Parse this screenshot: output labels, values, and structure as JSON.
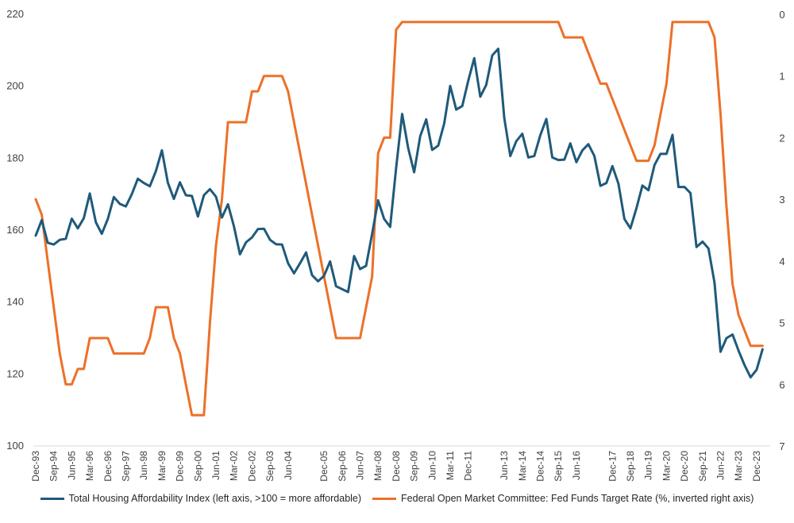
{
  "chart_data": {
    "type": "line",
    "title": "",
    "x_tick_labels": [
      "Dec-93",
      "Sep-94",
      "Jun-95",
      "Mar-96",
      "Dec-96",
      "Sep-97",
      "Jun-98",
      "Mar-99",
      "Dec-99",
      "Sep-00",
      "Jun-01",
      "Mar-02",
      "Dec-02",
      "Sep-03",
      "Jun-04",
      "Dec-05",
      "Sep-06",
      "Jun-07",
      "Mar-08",
      "Dec-08",
      "Sep-09",
      "Jun-10",
      "Mar-11",
      "Dec-11",
      "Jun-13",
      "Mar-14",
      "Dec-14",
      "Sep-15",
      "Jun-16",
      "Dec-17",
      "Sep-18",
      "Jun-19",
      "Mar-20",
      "Dec-20",
      "Sep-21",
      "Jun-22",
      "Mar-23",
      "Dec-23"
    ],
    "left_axis": {
      "ylim": [
        100,
        220
      ],
      "ticks": [
        100,
        120,
        140,
        160,
        180,
        200,
        220
      ]
    },
    "right_axis": {
      "ylim": [
        0,
        7
      ],
      "inverted": true,
      "ticks": [
        0,
        1,
        2,
        3,
        4,
        5,
        6,
        7
      ]
    },
    "x_range": [
      "1993-12",
      "2024-06"
    ],
    "grid": false,
    "legend_position": "bottom",
    "series": [
      {
        "name": "Total Housing Affordability Index (left axis, >100 = more affordable)",
        "axis": "left",
        "color": "#1f5a7a",
        "x": [
          "1993-12",
          "1994-03",
          "1994-06",
          "1994-09",
          "1994-12",
          "1995-03",
          "1995-06",
          "1995-09",
          "1995-12",
          "1996-03",
          "1996-06",
          "1996-09",
          "1996-12",
          "1997-03",
          "1997-06",
          "1997-09",
          "1997-12",
          "1998-03",
          "1998-06",
          "1998-09",
          "1998-12",
          "1999-03",
          "1999-06",
          "1999-09",
          "1999-12",
          "2000-03",
          "2000-06",
          "2000-09",
          "2000-12",
          "2001-03",
          "2001-06",
          "2001-09",
          "2001-12",
          "2002-03",
          "2002-06",
          "2002-09",
          "2002-12",
          "2003-03",
          "2003-06",
          "2003-09",
          "2003-12",
          "2004-03",
          "2004-06",
          "2004-09",
          "2004-12",
          "2005-03",
          "2005-06",
          "2005-09",
          "2005-12",
          "2006-03",
          "2006-06",
          "2006-09",
          "2006-12",
          "2007-03",
          "2007-06",
          "2007-09",
          "2007-12",
          "2008-03",
          "2008-06",
          "2008-09",
          "2008-12",
          "2009-03",
          "2009-06",
          "2009-09",
          "2009-12",
          "2010-03",
          "2010-06",
          "2010-09",
          "2010-12",
          "2011-03",
          "2011-06",
          "2011-09",
          "2011-12",
          "2012-03",
          "2012-06",
          "2012-09",
          "2012-12",
          "2013-03",
          "2013-06",
          "2013-09",
          "2013-12",
          "2014-03",
          "2014-06",
          "2014-09",
          "2014-12",
          "2015-03",
          "2015-06",
          "2015-09",
          "2015-12",
          "2016-03",
          "2016-06",
          "2016-09",
          "2016-12",
          "2017-03",
          "2017-06",
          "2017-09",
          "2017-12",
          "2018-03",
          "2018-06",
          "2018-09",
          "2018-12",
          "2019-03",
          "2019-06",
          "2019-09",
          "2019-12",
          "2020-03",
          "2020-06",
          "2020-09",
          "2020-12",
          "2021-03",
          "2021-06",
          "2021-09",
          "2021-12",
          "2022-03",
          "2022-06",
          "2022-09",
          "2022-12",
          "2023-03",
          "2023-06",
          "2023-09",
          "2023-12",
          "2024-03"
        ],
        "values": [
          158.5,
          162.8,
          156.5,
          156.0,
          157.3,
          157.6,
          163.2,
          160.5,
          163.3,
          170.2,
          162.2,
          159.0,
          163.1,
          169.2,
          167.3,
          166.6,
          170.0,
          174.3,
          173.1,
          172.2,
          176.4,
          182.2,
          173.2,
          168.7,
          173.3,
          169.7,
          169.5,
          163.8,
          169.7,
          171.4,
          169.3,
          163.5,
          167.2,
          161.0,
          153.3,
          156.6,
          158.0,
          160.3,
          160.4,
          157.3,
          156.1,
          156.0,
          150.8,
          148.0,
          150.8,
          153.8,
          147.5,
          145.8,
          147.3,
          151.3,
          144.4,
          143.6,
          142.8,
          152.8,
          149.2,
          150.1,
          159.0,
          168.3,
          163.1,
          160.9,
          177.3,
          192.3,
          182.8,
          176.1,
          186.1,
          190.8,
          182.3,
          183.5,
          189.7,
          200.1,
          193.5,
          194.5,
          201.5,
          207.8,
          197.1,
          200.4,
          208.6,
          210.4,
          191.2,
          180.6,
          184.7,
          186.8,
          180.2,
          180.6,
          186.4,
          190.9,
          180.2,
          179.5,
          179.6,
          184.1,
          178.9,
          182.2,
          183.9,
          180.6,
          172.3,
          173.1,
          177.8,
          172.9,
          163.1,
          160.5,
          166.1,
          172.4,
          171.1,
          178.1,
          181.2,
          181.2,
          186.5,
          172.0,
          172.0,
          170.3,
          155.3,
          156.8,
          154.9,
          145.4,
          126.2,
          130.0,
          131.0,
          126.5,
          122.5,
          119.1,
          121.2,
          126.9
        ]
      },
      {
        "name": "Federal Open Market Committee: Fed Funds Target Rate (%, inverted right axis)",
        "axis": "right",
        "color": "#ed7028",
        "x": [
          "1993-12",
          "1994-03",
          "1994-06",
          "1994-09",
          "1994-12",
          "1995-03",
          "1995-06",
          "1995-09",
          "1995-12",
          "1996-03",
          "1996-06",
          "1996-09",
          "1996-12",
          "1997-03",
          "1997-06",
          "1997-09",
          "1997-12",
          "1998-03",
          "1998-06",
          "1998-09",
          "1998-12",
          "1999-03",
          "1999-06",
          "1999-09",
          "1999-12",
          "2000-03",
          "2000-06",
          "2000-09",
          "2000-12",
          "2001-03",
          "2001-06",
          "2001-09",
          "2001-12",
          "2002-03",
          "2002-06",
          "2002-09",
          "2002-12",
          "2003-03",
          "2003-06",
          "2003-09",
          "2003-12",
          "2004-03",
          "2004-06",
          "2004-09",
          "2004-12",
          "2005-03",
          "2005-06",
          "2005-09",
          "2005-12",
          "2006-03",
          "2006-06",
          "2006-09",
          "2006-12",
          "2007-03",
          "2007-06",
          "2007-09",
          "2007-12",
          "2008-03",
          "2008-06",
          "2008-09",
          "2008-12",
          "2009-03",
          "2009-06",
          "2009-09",
          "2009-12",
          "2010-03",
          "2010-06",
          "2010-09",
          "2010-12",
          "2011-03",
          "2011-06",
          "2011-09",
          "2011-12",
          "2012-03",
          "2012-06",
          "2012-09",
          "2012-12",
          "2013-03",
          "2013-06",
          "2013-09",
          "2013-12",
          "2014-03",
          "2014-06",
          "2014-09",
          "2014-12",
          "2015-03",
          "2015-06",
          "2015-09",
          "2015-12",
          "2016-03",
          "2016-06",
          "2016-09",
          "2016-12",
          "2017-03",
          "2017-06",
          "2017-09",
          "2017-12",
          "2018-03",
          "2018-06",
          "2018-09",
          "2018-12",
          "2019-03",
          "2019-06",
          "2019-09",
          "2019-12",
          "2020-03",
          "2020-06",
          "2020-09",
          "2020-12",
          "2021-03",
          "2021-06",
          "2021-09",
          "2021-12",
          "2022-03",
          "2022-06",
          "2022-09",
          "2022-12",
          "2023-03",
          "2023-06",
          "2023-09",
          "2023-12",
          "2024-03"
        ],
        "values": [
          3.0,
          3.25,
          4.0,
          4.75,
          5.5,
          6.0,
          6.0,
          5.75,
          5.75,
          5.25,
          5.25,
          5.25,
          5.25,
          5.5,
          5.5,
          5.5,
          5.5,
          5.5,
          5.5,
          5.25,
          4.75,
          4.75,
          4.75,
          5.25,
          5.5,
          6.0,
          6.5,
          6.5,
          6.5,
          5.0,
          3.75,
          3.0,
          1.75,
          1.75,
          1.75,
          1.75,
          1.25,
          1.25,
          1.0,
          1.0,
          1.0,
          1.0,
          1.25,
          1.75,
          2.25,
          2.75,
          3.25,
          3.75,
          4.25,
          4.75,
          5.25,
          5.25,
          5.25,
          5.25,
          5.25,
          4.75,
          4.25,
          2.25,
          2.0,
          2.0,
          0.25,
          0.125,
          0.125,
          0.125,
          0.125,
          0.125,
          0.125,
          0.125,
          0.125,
          0.125,
          0.125,
          0.125,
          0.125,
          0.125,
          0.125,
          0.125,
          0.125,
          0.125,
          0.125,
          0.125,
          0.125,
          0.125,
          0.125,
          0.125,
          0.125,
          0.125,
          0.125,
          0.125,
          0.375,
          0.375,
          0.375,
          0.375,
          0.625,
          0.875,
          1.125,
          1.125,
          1.375,
          1.625,
          1.875,
          2.125,
          2.375,
          2.375,
          2.375,
          2.125,
          1.625,
          1.125,
          0.125,
          0.125,
          0.125,
          0.125,
          0.125,
          0.125,
          0.125,
          0.375,
          1.625,
          3.125,
          4.375,
          4.875,
          5.125,
          5.375,
          5.375,
          5.375
        ]
      }
    ]
  }
}
